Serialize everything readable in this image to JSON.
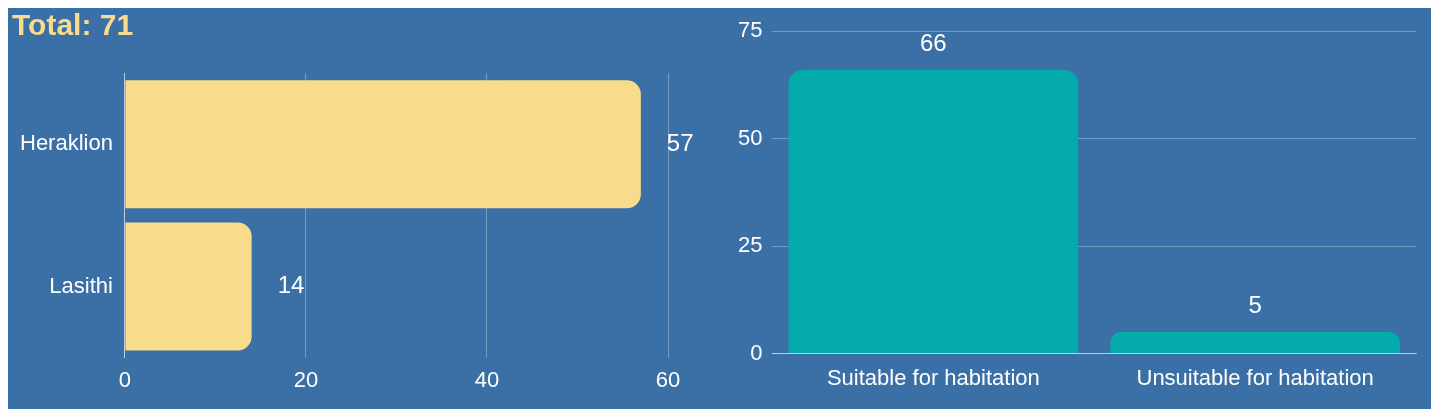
{
  "chart_data": [
    {
      "type": "bar",
      "title": "Total: 71",
      "orientation": "horizontal",
      "categories": [
        "Heraklion",
        "Lasithi"
      ],
      "values": [
        57,
        14
      ],
      "color": "#f9db8c",
      "xlim": [
        0,
        60
      ],
      "xticks": [
        0,
        20,
        40,
        60
      ],
      "grid": "x",
      "data_labels": true,
      "legend": false
    },
    {
      "type": "bar",
      "categories": [
        "Suitable for habitation",
        "Unsuitable for habitation"
      ],
      "values": [
        66,
        5
      ],
      "color": "#03abab",
      "ylim": [
        0,
        75
      ],
      "yticks": [
        0,
        25,
        50,
        75
      ],
      "grid": "y",
      "data_labels": true,
      "legend": false
    }
  ]
}
